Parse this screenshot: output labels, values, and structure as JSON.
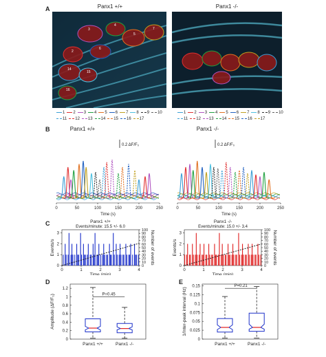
{
  "panel_letters": [
    "A",
    "B",
    "C",
    "D",
    "E"
  ],
  "panelA": {
    "left_title": "Panx1 +/+",
    "right_title": "Panx1 -/-",
    "left_labels": [
      "1",
      "2",
      "3",
      "4",
      "5",
      "6",
      "7",
      "8",
      "9",
      "10",
      "11",
      "12",
      "13",
      "14",
      "15",
      "16",
      "17"
    ],
    "right_labels": [
      "12",
      "13",
      "14",
      "15",
      "16",
      "17"
    ],
    "legend": [
      {
        "label": "1",
        "color": "#3a9fd6",
        "dash": false
      },
      {
        "label": "2",
        "color": "#e03030",
        "dash": false
      },
      {
        "label": "3",
        "color": "#b054c0",
        "dash": false
      },
      {
        "label": "4",
        "color": "#20a040",
        "dash": false
      },
      {
        "label": "5",
        "color": "#e07020",
        "dash": false
      },
      {
        "label": "6",
        "color": "#2060c0",
        "dash": false
      },
      {
        "label": "7",
        "color": "#c0a020",
        "dash": false
      },
      {
        "label": "8",
        "color": "#4cc0e0",
        "dash": false
      },
      {
        "label": "9",
        "color": "#303030",
        "dash": true
      },
      {
        "label": "10",
        "color": "#606060",
        "dash": true
      },
      {
        "label": "11",
        "color": "#3a9fd6",
        "dash": true
      },
      {
        "label": "12",
        "color": "#e03030",
        "dash": true
      },
      {
        "label": "13",
        "color": "#b054c0",
        "dash": true
      },
      {
        "label": "14",
        "color": "#20a040",
        "dash": true
      },
      {
        "label": "15",
        "color": "#e07020",
        "dash": true
      },
      {
        "label": "16",
        "color": "#2060c0",
        "dash": true
      },
      {
        "label": "17",
        "color": "#c0a020",
        "dash": true
      }
    ]
  },
  "panelB": {
    "left_title": "Panx1 +/+",
    "right_title": "Panx1 -/-",
    "scale_label": "0.2 ΔF/F₀",
    "xlabel": "Time (s)",
    "xticks": [
      "0",
      "50",
      "100",
      "150",
      "200",
      "250"
    ]
  },
  "panelC": {
    "left_title": "Panx1 +/+",
    "right_title": "Panx1 -/-",
    "left_subtitle": "Events/minute: 15.5 +/- 6.0",
    "right_subtitle": "Events/minute: 15.0 +/- 3.4",
    "ylabel_left": "Events/s",
    "ylabel_right": "Number of events",
    "xlabel": "Time (min)",
    "xticks": [
      "0",
      "1",
      "2",
      "3",
      "4"
    ],
    "yticks_left": [
      "0",
      "1",
      "2",
      "3"
    ],
    "yticks_right": [
      "0",
      "10",
      "20",
      "30",
      "40",
      "50",
      "60",
      "70",
      "80",
      "90",
      "100"
    ],
    "left_bar_color": "#1a2fc9",
    "right_bar_color": "#e02020"
  },
  "panelD": {
    "ylabel": "Amplitude (ΔF/F₀)",
    "pvalue": "P=0.45",
    "categories": [
      "Panx1 +/+",
      "Panx1 -/-"
    ],
    "yticks": [
      "0",
      "0.2",
      "0.4",
      "0.6",
      "0.8",
      "1",
      "1.2"
    ]
  },
  "panelE": {
    "ylabel": "1/Inter-peak interval (Hz)",
    "pvalue": "P=0.21",
    "categories": [
      "Panx1 +/+",
      "Panx1 -/-"
    ],
    "yticks": [
      "0",
      "0.025",
      "0.05",
      "0.075",
      "0.1",
      "0.125",
      "0.15"
    ]
  },
  "chart_data": [
    {
      "type": "line",
      "panel": "B-left",
      "title": "Panx1 +/+",
      "xlabel": "Time (s)",
      "xlim": [
        0,
        250
      ],
      "peaks_s": [
        18,
        28,
        35,
        42,
        55,
        65,
        72,
        85,
        95,
        105,
        115,
        122,
        135,
        150,
        160,
        175,
        190,
        200,
        215,
        225
      ],
      "peak_heights": [
        0.35,
        0.5,
        0.3,
        0.45,
        0.55,
        0.6,
        0.5,
        0.4,
        0.42,
        0.3,
        0.5,
        0.58,
        0.62,
        0.4,
        0.5,
        0.55,
        0.45,
        0.3,
        0.35,
        0.4
      ]
    },
    {
      "type": "line",
      "panel": "B-right",
      "title": "Panx1 -/-",
      "xlabel": "Time (s)",
      "xlim": [
        0,
        250
      ],
      "peaks_s": [
        10,
        20,
        30,
        38,
        48,
        60,
        70,
        80,
        88,
        98,
        108,
        118,
        128,
        140,
        150,
        160,
        170,
        180,
        190,
        200,
        210,
        222
      ],
      "peak_heights": [
        0.4,
        0.5,
        0.55,
        0.45,
        0.6,
        0.5,
        0.42,
        0.55,
        0.5,
        0.48,
        0.45,
        0.58,
        0.5,
        0.42,
        0.45,
        0.5,
        0.4,
        0.45,
        0.38,
        0.35,
        0.42,
        0.3
      ]
    },
    {
      "type": "bar",
      "panel": "C-left",
      "title": "Panx1 +/+",
      "subtitle": "Events/minute: 15.5 +/- 6.0",
      "xlabel": "Time (min)",
      "ylabel": "Events/s",
      "xlim": [
        0,
        4
      ],
      "ylim": [
        0,
        3.3
      ],
      "bins": 80,
      "values": [
        0,
        1,
        0,
        2,
        1,
        0,
        1,
        3,
        0,
        1,
        2,
        1,
        0,
        1,
        0,
        2,
        1,
        1,
        0,
        3,
        1,
        0,
        2,
        1,
        1,
        0,
        1,
        2,
        0,
        1,
        1,
        0,
        2,
        1,
        3,
        0,
        1,
        1,
        2,
        0,
        1,
        0,
        1,
        2,
        1,
        0,
        1,
        1,
        0,
        2,
        1,
        1,
        0,
        3,
        1,
        0,
        2,
        1,
        0,
        1,
        2,
        1,
        0,
        1,
        1,
        0,
        2,
        1,
        0,
        1,
        1,
        2,
        0,
        1,
        0,
        2,
        1,
        1,
        0,
        1
      ],
      "cumulative_events": [
        0,
        15,
        31,
        46,
        62
      ]
    },
    {
      "type": "bar",
      "panel": "C-right",
      "title": "Panx1 -/-",
      "subtitle": "Events/minute: 15.0 +/- 3.4",
      "xlabel": "Time (min)",
      "ylabel": "Number of events",
      "xlim": [
        0,
        4
      ],
      "ylim": [
        0,
        3.3
      ],
      "bins": 80,
      "values": [
        1,
        0,
        1,
        2,
        0,
        1,
        1,
        0,
        2,
        1,
        0,
        1,
        3,
        1,
        0,
        1,
        2,
        0,
        1,
        1,
        2,
        0,
        1,
        1,
        0,
        2,
        1,
        0,
        1,
        1,
        0,
        2,
        1,
        1,
        0,
        1,
        3,
        0,
        1,
        2,
        1,
        0,
        1,
        1,
        0,
        2,
        1,
        1,
        0,
        1,
        2,
        1,
        0,
        1,
        1,
        0,
        3,
        1,
        0,
        1,
        2,
        1,
        0,
        1,
        1,
        0,
        2,
        1,
        0,
        1,
        2,
        1,
        0,
        1,
        1,
        0,
        2,
        1,
        0,
        1
      ],
      "cumulative_events": [
        0,
        15,
        30,
        45,
        60
      ]
    },
    {
      "type": "box",
      "panel": "D",
      "ylabel": "Amplitude (ΔF/F₀)",
      "categories": [
        "Panx1 +/+",
        "Panx1 -/-"
      ],
      "ylim": [
        0,
        1.3
      ],
      "boxes": [
        {
          "min": 0.02,
          "q1": 0.17,
          "median": 0.26,
          "q3": 0.48,
          "max": 1.22,
          "notch_low": 0.22,
          "notch_high": 0.3
        },
        {
          "min": 0.02,
          "q1": 0.15,
          "median": 0.25,
          "q3": 0.37,
          "max": 0.75,
          "notch_low": 0.22,
          "notch_high": 0.29
        }
      ],
      "pvalue": "P=0.45"
    },
    {
      "type": "box",
      "panel": "E",
      "ylabel": "1/Inter-peak interval (Hz)",
      "categories": [
        "Panx1 +/+",
        "Panx1 -/-"
      ],
      "ylim": [
        0,
        0.155
      ],
      "boxes": [
        {
          "min": 0.003,
          "q1": 0.02,
          "median": 0.033,
          "q3": 0.058,
          "max": 0.12,
          "notch_low": 0.027,
          "notch_high": 0.04
        },
        {
          "min": 0.003,
          "q1": 0.022,
          "median": 0.033,
          "q3": 0.073,
          "max": 0.148,
          "notch_low": 0.028,
          "notch_high": 0.042
        }
      ],
      "pvalue": "P=0.21"
    }
  ]
}
